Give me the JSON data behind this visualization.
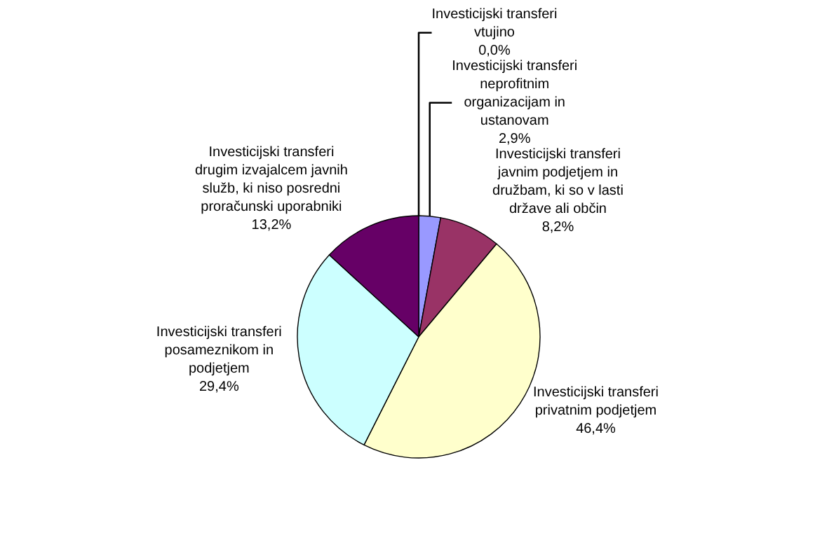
{
  "chart_data": {
    "type": "pie",
    "categories": [
      "Investicijski transferi vtujino",
      "Investicijski transferi neprofitnim organizacijam in ustanovam",
      "Investicijski transferi javnim podjetjem in družbam, ki so v lasti države ali občin",
      "Investicijski transferi privatnim podjetjem",
      "Investicijski transferi posameznikom in podjetjem",
      "Investicijski transferi drugim izvajalcem javnih služb, ki niso posredni proračunski uporabniki"
    ],
    "values": [
      0.0,
      2.9,
      8.2,
      46.4,
      29.4,
      13.2
    ],
    "value_labels": [
      "0,0%",
      "2,9%",
      "8,2%",
      "46,4%",
      "29,4%",
      "13,2%"
    ],
    "colors": [
      "#ff8080",
      "#9999ff",
      "#993366",
      "#ffffcc",
      "#ccffff",
      "#660066"
    ]
  }
}
